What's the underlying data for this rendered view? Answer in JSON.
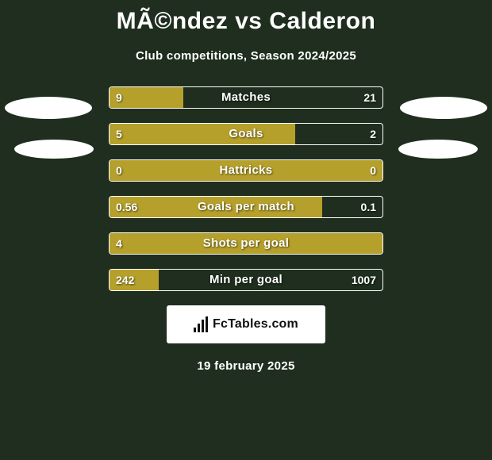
{
  "background_color": "#1f2e1e",
  "title": "MÃ©ndez vs Calderon",
  "title_fontsize": 30,
  "title_color": "#ffffff",
  "subtitle": "Club competitions, Season 2024/2025",
  "subtitle_fontsize": 15,
  "bar_color": "#b5a02b",
  "bar_border_color": "#ffffff",
  "bar_text_color": "#ffffff",
  "bars": [
    {
      "label": "Matches",
      "left_val": "9",
      "right_val": "21",
      "left_pct": 27,
      "right_pct": 0,
      "full_left": false
    },
    {
      "label": "Goals",
      "left_val": "5",
      "right_val": "2",
      "left_pct": 68,
      "right_pct": 0,
      "full_left": false
    },
    {
      "label": "Hattricks",
      "left_val": "0",
      "right_val": "0",
      "left_pct": 100,
      "right_pct": 0,
      "full_left": true
    },
    {
      "label": "Goals per match",
      "left_val": "0.56",
      "right_val": "0.1",
      "left_pct": 78,
      "right_pct": 0,
      "full_left": false
    },
    {
      "label": "Shots per goal",
      "left_val": "4",
      "right_val": "",
      "left_pct": 100,
      "right_pct": 0,
      "full_left": true
    },
    {
      "label": "Min per goal",
      "left_val": "242",
      "right_val": "1007",
      "left_pct": 18,
      "right_pct": 0,
      "full_left": false
    }
  ],
  "logo_text": "FcTables.com",
  "date": "19 february 2025"
}
